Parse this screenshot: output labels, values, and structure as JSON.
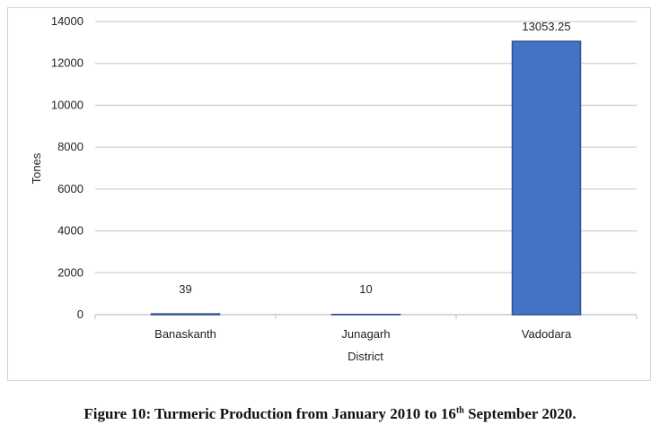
{
  "chart_data": {
    "type": "bar",
    "categories": [
      "Banaskanth",
      "Junagarh",
      "Vadodara"
    ],
    "values": [
      39,
      10,
      13053.25
    ],
    "data_labels": [
      "39",
      "10",
      "13053.25"
    ],
    "xlabel": "District",
    "ylabel": "Tones",
    "ylim": [
      0,
      14000
    ],
    "yticks": [
      0,
      2000,
      4000,
      6000,
      8000,
      10000,
      12000,
      14000
    ],
    "grid": true,
    "bar_color": "#4472C4",
    "bar_edge_color": "#2F528F"
  },
  "caption": {
    "prefix": "Figure 10: Turmeric Production from January 2010 to 16",
    "sup": "th",
    "suffix": " September 2020."
  }
}
